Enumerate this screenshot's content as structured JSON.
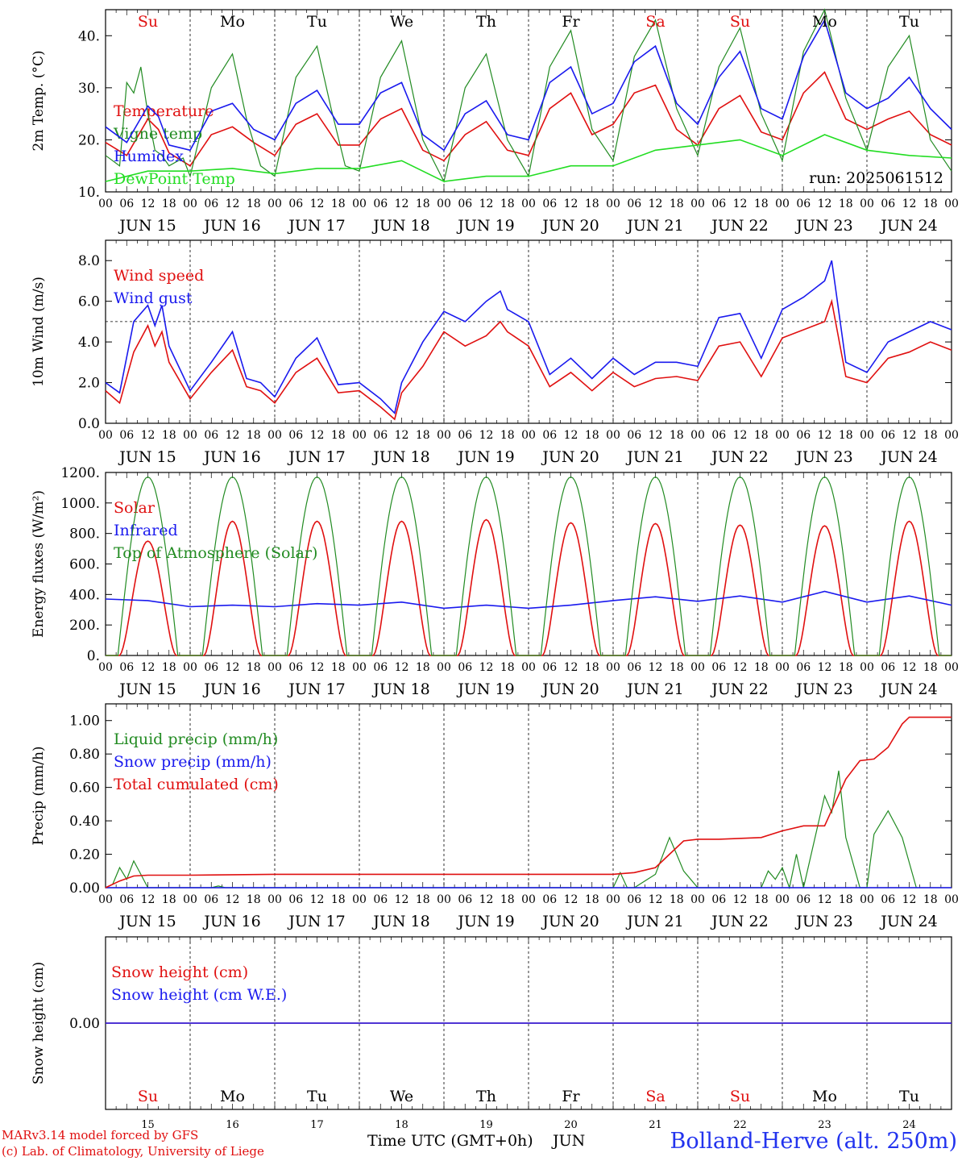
{
  "chart_data": [
    {
      "type": "line",
      "ylabel": "2m Temp. (°C)",
      "ylim": [
        10,
        45
      ],
      "yticks": [
        "10.",
        "20.",
        "30.",
        "40."
      ],
      "yvalues": [
        10,
        20,
        30,
        40
      ],
      "day_labels": [
        "Su",
        "Mo",
        "Tu",
        "We",
        "Th",
        "Fr",
        "Sa",
        "Su",
        "Mo",
        "Tu"
      ],
      "day_colors": [
        "#e01010",
        "#000000",
        "#000000",
        "#000000",
        "#000000",
        "#000000",
        "#e01010",
        "#e01010",
        "#000000",
        "#000000"
      ],
      "annotation": "run: 2025061512",
      "series": [
        {
          "name": "Temperature",
          "color": "#e01010",
          "x": [
            0,
            6,
            12,
            15,
            18,
            24,
            30,
            36,
            42,
            48,
            54,
            60,
            66,
            72,
            78,
            84,
            90,
            96,
            102,
            108,
            114,
            120,
            126,
            132,
            138,
            144,
            150,
            156,
            162,
            168,
            174,
            180,
            186,
            192,
            198,
            204,
            210,
            216,
            222,
            228,
            234,
            240
          ],
          "y": [
            19.5,
            17,
            24,
            22,
            17.5,
            15,
            21,
            22.5,
            19.5,
            17,
            23,
            25,
            19,
            19,
            24,
            26,
            18,
            16,
            21,
            23.5,
            18,
            17,
            26,
            29,
            21,
            23,
            29,
            30.5,
            22,
            19,
            26,
            28.5,
            21.5,
            20,
            29,
            33,
            24,
            22,
            24,
            25.5,
            21,
            19
          ]
        },
        {
          "name": "Vigne temp",
          "color": "#228b22",
          "x": [
            0,
            4,
            6,
            8,
            10,
            12,
            14,
            16,
            18,
            22,
            24,
            30,
            36,
            40,
            44,
            48,
            54,
            60,
            64,
            68,
            72,
            78,
            84,
            90,
            96,
            102,
            108,
            114,
            120,
            126,
            132,
            138,
            144,
            150,
            156,
            162,
            168,
            174,
            180,
            186,
            192,
            198,
            204,
            210,
            216,
            222,
            228,
            234,
            240
          ],
          "y": [
            17,
            15,
            31,
            29,
            34,
            25,
            18,
            17,
            15,
            16.5,
            13,
            30,
            36.5,
            24,
            15,
            13,
            32,
            38,
            26,
            15,
            14,
            32,
            39,
            20,
            12,
            30,
            36.5,
            20,
            13,
            34,
            41,
            22,
            16,
            36,
            43,
            26,
            17,
            34,
            41.5,
            25,
            16,
            37,
            45,
            28,
            18,
            34,
            40,
            20,
            14
          ]
        },
        {
          "name": "Humidex",
          "color": "#1a1aee",
          "x": [
            0,
            6,
            12,
            15,
            18,
            24,
            30,
            36,
            42,
            48,
            54,
            60,
            66,
            72,
            78,
            84,
            90,
            96,
            102,
            108,
            114,
            120,
            126,
            132,
            138,
            144,
            150,
            156,
            162,
            168,
            174,
            180,
            186,
            192,
            198,
            204,
            210,
            216,
            222,
            228,
            234,
            240
          ],
          "y": [
            22.5,
            19.5,
            26.5,
            24.5,
            19,
            18,
            25.5,
            27,
            22,
            20,
            27,
            29.5,
            23,
            23,
            29,
            31,
            21,
            18,
            25,
            27.5,
            21,
            20,
            31,
            34,
            25,
            27,
            35,
            38,
            27,
            23,
            32,
            37,
            26,
            24,
            36,
            43,
            29,
            26,
            28,
            32,
            26,
            22
          ]
        },
        {
          "name": "DewPoint Temp",
          "color": "#22dd22",
          "x": [
            0,
            12,
            24,
            36,
            48,
            60,
            72,
            84,
            96,
            108,
            120,
            132,
            144,
            156,
            168,
            180,
            192,
            204,
            216,
            228,
            240
          ],
          "y": [
            12,
            14,
            14,
            14.5,
            13.5,
            14.5,
            14.5,
            16,
            12,
            13,
            13,
            15,
            15,
            18,
            19,
            20,
            17,
            21,
            18,
            17,
            16.5
          ]
        }
      ]
    },
    {
      "type": "line",
      "ylabel": "10m Wind (m/s)",
      "ylim": [
        0,
        9
      ],
      "yticks": [
        "0.0",
        "2.0",
        "4.0",
        "6.0",
        "8.0"
      ],
      "yvalues": [
        0,
        2,
        4,
        6,
        8
      ],
      "reference_line": 5,
      "series": [
        {
          "name": "Wind speed",
          "color": "#e01010",
          "x": [
            0,
            4,
            8,
            12,
            14,
            16,
            18,
            24,
            30,
            36,
            40,
            44,
            48,
            54,
            60,
            66,
            72,
            78,
            82,
            84,
            90,
            96,
            102,
            108,
            112,
            114,
            120,
            126,
            132,
            138,
            144,
            150,
            156,
            162,
            168,
            174,
            180,
            186,
            192,
            198,
            204,
            206,
            210,
            216,
            222,
            228,
            234,
            240
          ],
          "y": [
            1.6,
            1.0,
            3.5,
            4.8,
            3.8,
            4.5,
            3.0,
            1.2,
            2.5,
            3.6,
            1.8,
            1.6,
            1.0,
            2.5,
            3.2,
            1.5,
            1.6,
            0.8,
            0.2,
            1.5,
            2.8,
            4.5,
            3.8,
            4.3,
            5.0,
            4.5,
            3.8,
            1.8,
            2.5,
            1.6,
            2.5,
            1.8,
            2.2,
            2.3,
            2.1,
            3.8,
            4.0,
            2.3,
            4.2,
            4.6,
            5.0,
            6.0,
            2.3,
            2.0,
            3.2,
            3.5,
            4.0,
            3.6
          ]
        },
        {
          "name": "Wind gust",
          "color": "#1a1aee",
          "x": [
            0,
            4,
            8,
            12,
            14,
            16,
            18,
            24,
            30,
            36,
            40,
            44,
            48,
            54,
            60,
            66,
            72,
            78,
            82,
            84,
            90,
            96,
            102,
            108,
            112,
            114,
            120,
            126,
            132,
            138,
            144,
            150,
            156,
            162,
            168,
            174,
            180,
            186,
            192,
            198,
            204,
            206,
            210,
            216,
            222,
            228,
            234,
            240
          ],
          "y": [
            2.0,
            1.5,
            5.0,
            5.8,
            4.8,
            5.8,
            3.8,
            1.6,
            3.0,
            4.5,
            2.2,
            2.0,
            1.3,
            3.2,
            4.2,
            1.9,
            2.0,
            1.2,
            0.5,
            2.0,
            4.0,
            5.5,
            5.0,
            6.0,
            6.5,
            5.6,
            5.0,
            2.4,
            3.2,
            2.2,
            3.2,
            2.4,
            3.0,
            3.0,
            2.8,
            5.2,
            5.4,
            3.2,
            5.6,
            6.2,
            7.0,
            8.0,
            3.0,
            2.5,
            4.0,
            4.5,
            5.0,
            4.6
          ]
        }
      ]
    },
    {
      "type": "line",
      "ylabel": "Energy fluxes (W/m²)",
      "ylim": [
        0,
        1200
      ],
      "yticks": [
        "0.",
        "200.",
        "400.",
        "600.",
        "800.",
        "1000.",
        "1200."
      ],
      "yvalues": [
        0,
        200,
        400,
        600,
        800,
        1000,
        1200
      ],
      "series": [
        {
          "name": "Solar",
          "color": "#e01010",
          "peaks": [
            750,
            880,
            880,
            880,
            890,
            870,
            865,
            855,
            850,
            880
          ]
        },
        {
          "name": "Infrared",
          "color": "#1a1aee",
          "x": [
            0,
            12,
            24,
            36,
            48,
            60,
            72,
            84,
            96,
            108,
            120,
            132,
            144,
            156,
            168,
            180,
            192,
            204,
            216,
            228,
            240
          ],
          "y": [
            370,
            360,
            320,
            330,
            320,
            340,
            330,
            350,
            310,
            330,
            310,
            330,
            360,
            385,
            355,
            390,
            350,
            420,
            350,
            390,
            330
          ]
        },
        {
          "name": "Top of Atmosphere (Solar)",
          "color": "#228b22",
          "peak": 1170
        }
      ]
    },
    {
      "type": "line",
      "ylabel": "Precip (mm/h)",
      "ylim": [
        0,
        1.1
      ],
      "yticks": [
        "0.00",
        "0.20",
        "0.40",
        "0.60",
        "0.80",
        "1.00"
      ],
      "yvalues": [
        0,
        0.2,
        0.4,
        0.6,
        0.8,
        1.0
      ],
      "series": [
        {
          "name": "Liquid precip (mm/h)",
          "color": "#228b22",
          "x": [
            0,
            2,
            4,
            6,
            8,
            10,
            12,
            14,
            30,
            32,
            34,
            144,
            146,
            148,
            150,
            156,
            160,
            162,
            164,
            168,
            174,
            186,
            188,
            190,
            192,
            194,
            196,
            198,
            204,
            206,
            208,
            210,
            214,
            216,
            218,
            222,
            226,
            230
          ],
          "y": [
            0,
            0.02,
            0.12,
            0.05,
            0.16,
            0.08,
            0,
            0,
            0,
            0.01,
            0,
            0,
            0.09,
            0,
            0,
            0.08,
            0.3,
            0.2,
            0.1,
            0,
            0,
            0,
            0.1,
            0.05,
            0.12,
            0,
            0.2,
            0,
            0.55,
            0.45,
            0.7,
            0.3,
            0,
            0,
            0.32,
            0.46,
            0.3,
            0
          ]
        },
        {
          "name": "Snow precip (mm/h)",
          "color": "#1a1aee",
          "x": [
            0,
            240
          ],
          "y": [
            0,
            0
          ]
        },
        {
          "name": "Total cumulated (cm)",
          "color": "#e01010",
          "x": [
            0,
            4,
            8,
            12,
            24,
            48,
            72,
            96,
            120,
            144,
            150,
            156,
            160,
            164,
            168,
            174,
            186,
            192,
            198,
            204,
            210,
            214,
            218,
            222,
            226,
            228,
            240
          ],
          "y": [
            0,
            0.04,
            0.07,
            0.075,
            0.075,
            0.08,
            0.08,
            0.08,
            0.08,
            0.08,
            0.09,
            0.12,
            0.2,
            0.28,
            0.29,
            0.29,
            0.3,
            0.34,
            0.37,
            0.37,
            0.65,
            0.76,
            0.77,
            0.84,
            0.98,
            1.02,
            1.02
          ]
        }
      ]
    },
    {
      "type": "line",
      "ylabel": "Snow height (cm)",
      "yticks": [
        "0.00"
      ],
      "yvalues": [
        0
      ],
      "series": [
        {
          "name": "Snow height (cm)",
          "color": "#e01010",
          "x": [
            0,
            240
          ],
          "y": [
            0,
            0
          ]
        },
        {
          "name": "Snow height (cm W.E.)",
          "color": "#1a1aee",
          "x": [
            0,
            240
          ],
          "y": [
            0,
            0
          ]
        }
      ]
    }
  ],
  "time_axis": {
    "hour_ticks": [
      "00",
      "06",
      "12",
      "18"
    ],
    "dates": [
      "JUN 15",
      "JUN 16",
      "JUN 17",
      "JUN 18",
      "JUN 19",
      "JUN 20",
      "JUN 21",
      "JUN 22",
      "JUN 23",
      "JUN 24"
    ],
    "bottom_day_numbers": [
      "15",
      "16",
      "17",
      "18",
      "19",
      "20",
      "21",
      "22",
      "23",
      "24"
    ],
    "bottom_day_labels": [
      "Su",
      "Mo",
      "Tu",
      "We",
      "Th",
      "Fr",
      "Sa",
      "Su",
      "Mo",
      "Tu"
    ],
    "bottom_day_colors": [
      "#e01010",
      "#000000",
      "#000000",
      "#000000",
      "#000000",
      "#000000",
      "#e01010",
      "#e01010",
      "#000000",
      "#000000"
    ]
  },
  "footer": {
    "credit_line1": "MARv3.14 model forced by GFS",
    "credit_line2": "(c) Lab. of Climatology, University of Liege",
    "x_title": "Time UTC (GMT+0h)",
    "month": "JUN",
    "station": "Bolland-Herve (alt. 250m)"
  }
}
